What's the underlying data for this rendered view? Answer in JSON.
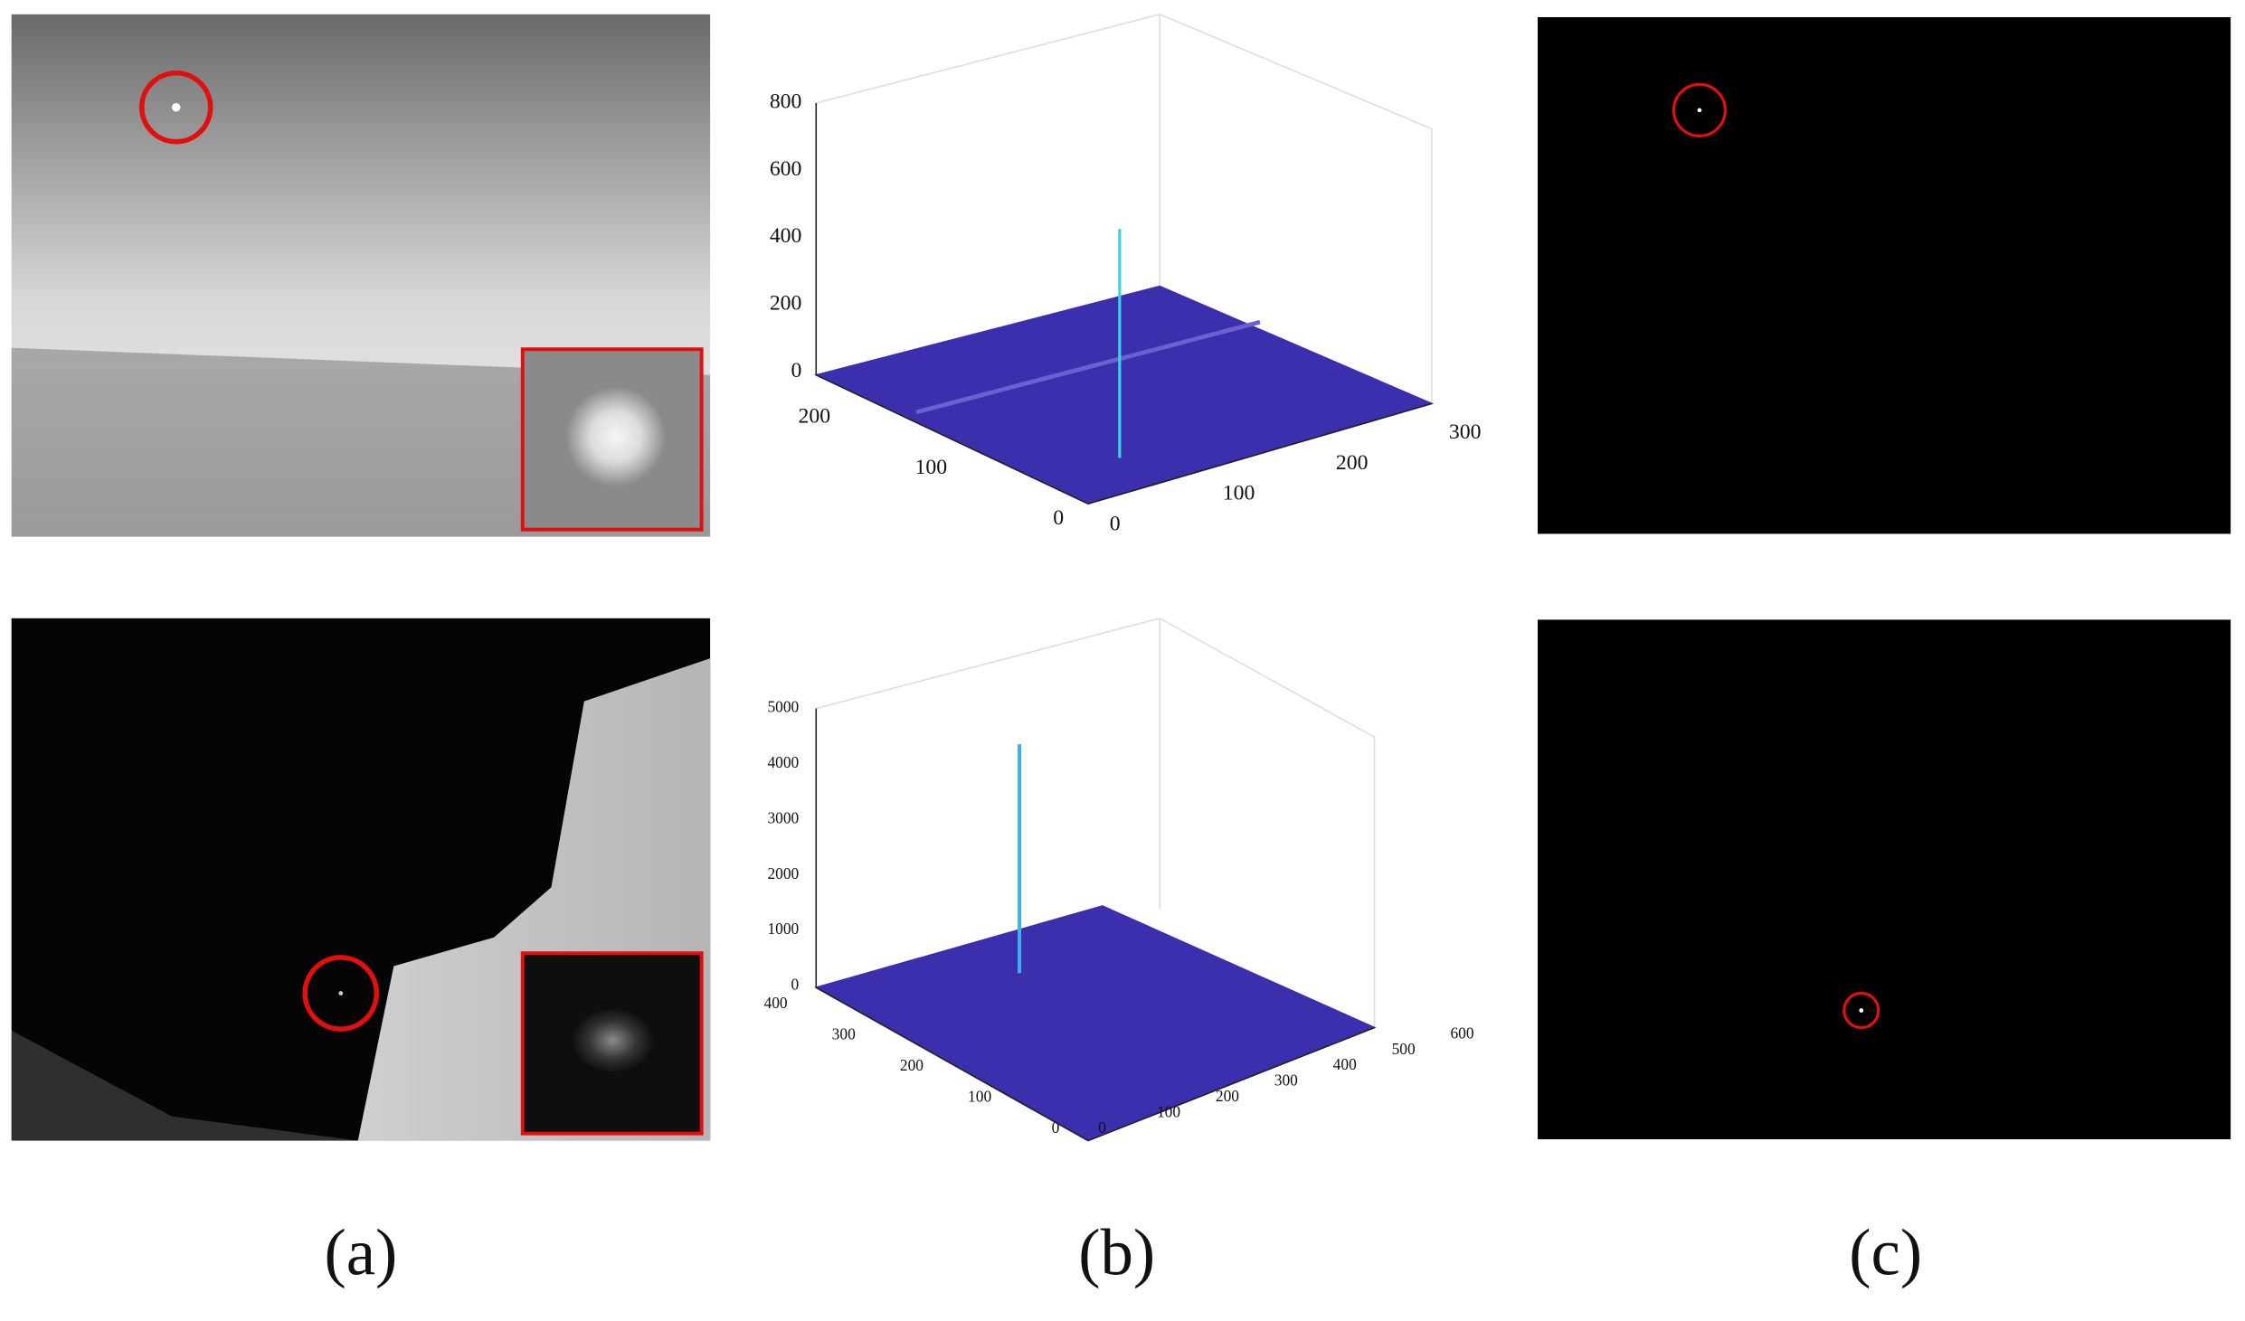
{
  "captions": [
    "(a)",
    "(b)",
    "(c)"
  ],
  "plots": [
    {
      "z_ticks": [
        "0",
        "200",
        "400",
        "600",
        "800"
      ],
      "y_ticks": [
        "0",
        "100",
        "200"
      ],
      "x_ticks": [
        "0",
        "100",
        "200",
        "300"
      ]
    },
    {
      "z_ticks": [
        "0",
        "1000",
        "2000",
        "3000",
        "4000",
        "5000"
      ],
      "y_ticks": [
        "0",
        "100",
        "200",
        "300",
        "400"
      ],
      "x_ticks": [
        "0",
        "100",
        "200",
        "300",
        "400",
        "500",
        "600"
      ]
    }
  ]
}
